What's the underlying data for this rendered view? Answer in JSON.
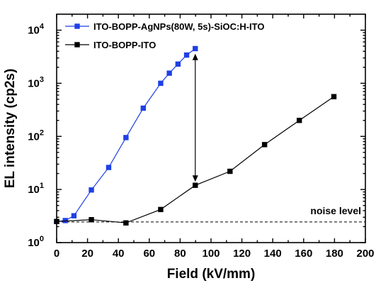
{
  "chart_data": {
    "type": "line",
    "xlabel": "Field (kV/mm)",
    "ylabel": "EL intensity (cp2s)",
    "xlim": [
      0,
      200
    ],
    "ylim": [
      1,
      20000
    ],
    "y_scale": "log",
    "grid": false,
    "legend_position": "top-left",
    "x_ticks": [
      "0",
      "20",
      "40",
      "60",
      "80",
      "100",
      "120",
      "140",
      "160",
      "180",
      "200"
    ],
    "y_tick_exponents": [
      "0",
      "1",
      "2",
      "3",
      "4"
    ],
    "y_tick_base": "10",
    "series": [
      {
        "name": "ITO-BOPP-AgNPs(80W, 5s)-SiOC:H-ITO",
        "color": "#1f3fe6",
        "marker": "square",
        "x": [
          0,
          5.6,
          11.2,
          22.5,
          33.7,
          44.9,
          56.1,
          67.4,
          73,
          78.6,
          84.2,
          89.8
        ],
        "y": [
          2.5,
          2.6,
          3.2,
          9.8,
          26,
          95,
          340,
          1000,
          1550,
          2300,
          3400,
          4500
        ]
      },
      {
        "name": "ITO-BOPP-ITO",
        "color": "#000000",
        "marker": "square",
        "x": [
          0,
          22.5,
          44.9,
          67.4,
          89.8,
          112.3,
          134.7,
          157.2,
          179.6
        ],
        "y": [
          2.5,
          2.7,
          2.35,
          4.2,
          12,
          22,
          70,
          200,
          560
        ]
      }
    ],
    "noise_level": {
      "label": "noise level",
      "y": 2.45
    },
    "arrow": {
      "x": 89.8,
      "y_from": 14,
      "y_to": 3600
    }
  }
}
